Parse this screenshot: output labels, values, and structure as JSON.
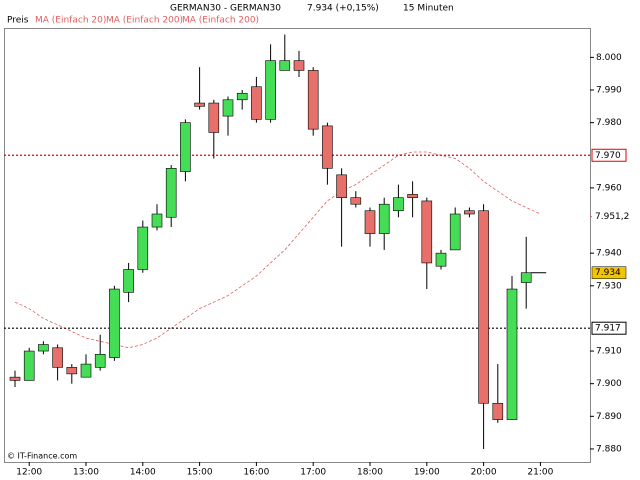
{
  "chart_data": {
    "type": "candlestick",
    "title": "GERMAN30 - GERMAN30",
    "price_change": "7.934 (+0,15%)",
    "interval": "15 Minuten",
    "legend": [
      "Preis",
      "MA (Einfach 20)",
      "MA (Einfach 200)",
      "MA (Einfach 200)"
    ],
    "copyright": "© IT-Finance.com",
    "categories": [
      null,
      "12:00",
      null,
      null,
      null,
      "13:00",
      null,
      null,
      null,
      "14:00",
      null,
      null,
      null,
      "15:00",
      null,
      null,
      null,
      "16:00",
      null,
      null,
      null,
      "17:00",
      null,
      null,
      null,
      "18:00",
      null,
      null,
      null,
      "19:00",
      null,
      null,
      null,
      "20:00",
      null,
      null,
      null,
      "21:00"
    ],
    "open": [
      7.902,
      7.901,
      7.91,
      7.911,
      7.905,
      7.902,
      7.905,
      7.908,
      7.928,
      7.935,
      7.948,
      7.951,
      7.965,
      7.986,
      7.986,
      7.982,
      7.987,
      7.991,
      7.981,
      7.996,
      7.999,
      7.996,
      7.979,
      7.964,
      7.957,
      7.953,
      7.946,
      7.953,
      7.958,
      7.956,
      7.936,
      7.941,
      7.953,
      7.953,
      7.894,
      7.889,
      7.931,
      null
    ],
    "high": [
      7.904,
      7.911,
      7.913,
      7.912,
      7.906,
      7.909,
      7.915,
      7.93,
      7.937,
      7.95,
      7.955,
      7.967,
      7.981,
      7.997,
      7.987,
      7.988,
      7.99,
      7.994,
      8.004,
      8.007,
      8.002,
      7.997,
      7.98,
      7.966,
      7.959,
      7.954,
      7.957,
      7.961,
      7.962,
      7.957,
      7.941,
      7.954,
      7.954,
      7.955,
      7.906,
      7.933,
      7.945,
      null
    ],
    "low": [
      7.899,
      7.901,
      7.909,
      7.901,
      7.9,
      7.902,
      7.904,
      7.907,
      7.925,
      7.934,
      7.947,
      7.948,
      7.962,
      7.984,
      7.969,
      7.976,
      7.984,
      7.98,
      7.98,
      7.996,
      7.994,
      7.976,
      7.961,
      7.942,
      7.954,
      7.942,
      7.941,
      7.951,
      7.951,
      7.929,
      7.935,
      7.941,
      7.951,
      7.88,
      7.888,
      7.889,
      7.923,
      null
    ],
    "close": [
      7.901,
      7.91,
      7.912,
      7.905,
      7.903,
      7.906,
      7.909,
      7.929,
      7.935,
      7.948,
      7.952,
      7.966,
      7.98,
      7.985,
      7.977,
      7.987,
      7.989,
      7.981,
      7.999,
      7.999,
      7.996,
      7.978,
      7.966,
      7.957,
      7.955,
      7.946,
      7.955,
      7.957,
      7.957,
      7.937,
      7.94,
      7.952,
      7.952,
      7.894,
      7.889,
      7.929,
      7.934,
      null
    ],
    "up_color": "#44dd55",
    "down_color": "#e8706a",
    "ma": {
      "color": "#e06060",
      "values": [
        7.925,
        7.923,
        7.92,
        7.918,
        7.916,
        7.914,
        7.913,
        7.912,
        7.911,
        7.912,
        7.914,
        7.917,
        7.92,
        7.923,
        7.925,
        7.927,
        7.93,
        7.933,
        7.937,
        7.941,
        7.946,
        7.951,
        7.956,
        7.959,
        7.961,
        7.964,
        7.967,
        7.97,
        7.971,
        7.971,
        7.97,
        7.969,
        7.966,
        7.962,
        7.959,
        7.956,
        7.954,
        7.952
      ]
    },
    "ma_last": {
      "value": 7.9512,
      "label": "7.951,2"
    },
    "hlines": [
      {
        "value": 7.97,
        "label": "7.970",
        "color": "#e00000"
      },
      {
        "value": 7.917,
        "label": "7.917",
        "color": "#000000"
      }
    ],
    "last": {
      "value": 7.934,
      "label": "7.934",
      "color": "#f5c400"
    },
    "ylim": [
      7.876,
      8.009
    ],
    "yticks": [
      {
        "value": 8.0,
        "label": "8.000"
      },
      {
        "value": 7.99,
        "label": "7.990"
      },
      {
        "value": 7.98,
        "label": "7.980"
      },
      {
        "value": 7.96,
        "label": "7.960"
      },
      {
        "value": 7.94,
        "label": "7.940"
      },
      {
        "value": 7.93,
        "label": "7.930"
      },
      {
        "value": 7.91,
        "label": "7.910"
      },
      {
        "value": 7.9,
        "label": "7.900"
      },
      {
        "value": 7.89,
        "label": "7.890"
      },
      {
        "value": 7.88,
        "label": "7.880"
      }
    ]
  }
}
